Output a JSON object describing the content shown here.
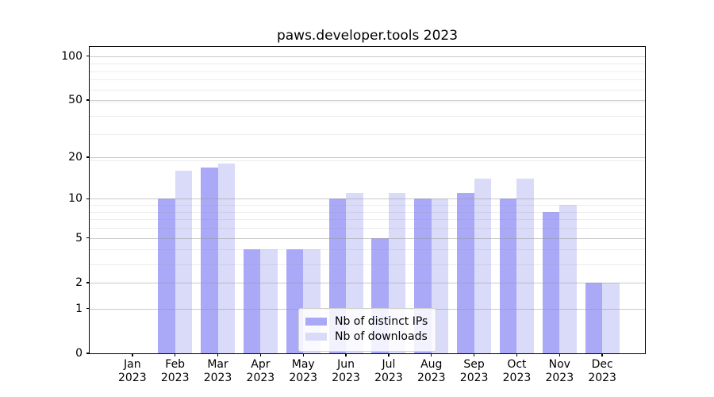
{
  "chart_data": {
    "type": "bar",
    "title": "paws.developer.tools 2023",
    "categories": [
      "Jan 2023",
      "Feb 2023",
      "Mar 2023",
      "Apr 2023",
      "May 2023",
      "Jun 2023",
      "Jul 2023",
      "Aug 2023",
      "Sep 2023",
      "Oct 2023",
      "Nov 2023",
      "Dec 2023"
    ],
    "series": [
      {
        "name": "Nb of distinct IPs",
        "key": "distinct-ips",
        "color": "#a9a9f7",
        "values": [
          0,
          10,
          17,
          4,
          4,
          10,
          5,
          10,
          11,
          10,
          8,
          2
        ]
      },
      {
        "name": "Nb of downloads",
        "key": "downloads",
        "color": "#dadaf9",
        "values": [
          0,
          16,
          18,
          4,
          4,
          11,
          11,
          10,
          14,
          14,
          9,
          2
        ]
      }
    ],
    "yscale": "log1p",
    "ylim": [
      0,
      115
    ],
    "y_ticks": [
      0,
      1,
      2,
      5,
      10,
      20,
      50,
      100
    ],
    "y_minor_gridlines": [
      3,
      4,
      6,
      7,
      8,
      9,
      19,
      29,
      39,
      49,
      59,
      69,
      79,
      89
    ],
    "grid": true,
    "legend_position": "lower center",
    "colors": {
      "major_grid": "rgba(150,150,150,0.5)",
      "minor_grid": "rgba(150,150,150,0.18)",
      "spine": "#000000",
      "background": "#ffffff"
    }
  }
}
